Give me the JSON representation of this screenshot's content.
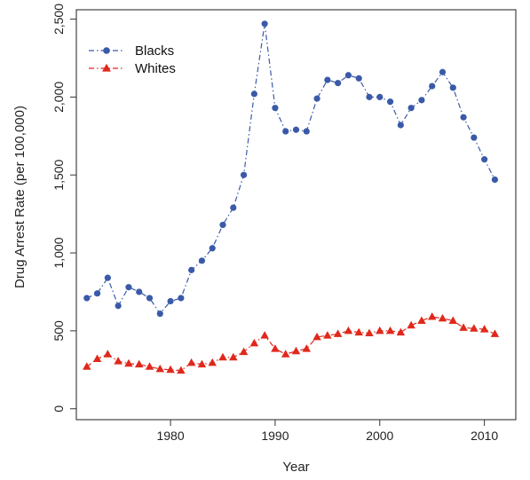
{
  "chart_data": {
    "type": "line",
    "title": "",
    "xlabel": "Year",
    "ylabel": "Drug Arrest Rate (per 100,000)",
    "xlim": [
      1971,
      2013
    ],
    "ylim": [
      -70,
      2560
    ],
    "x_ticks": [
      1980,
      1990,
      2000,
      2010
    ],
    "x_tick_labels": [
      "1980",
      "1990",
      "2000",
      "2010"
    ],
    "y_ticks": [
      0,
      500,
      1000,
      1500,
      2000,
      2500
    ],
    "y_tick_labels": [
      "0",
      "500",
      "1,000",
      "1,500",
      "2,000",
      "2,500"
    ],
    "grid": false,
    "legend_position": "top-left",
    "x": [
      1972,
      1973,
      1974,
      1975,
      1976,
      1977,
      1978,
      1979,
      1980,
      1981,
      1982,
      1983,
      1984,
      1985,
      1986,
      1987,
      1988,
      1989,
      1990,
      1991,
      1992,
      1993,
      1994,
      1995,
      1996,
      1997,
      1998,
      1999,
      2000,
      2001,
      2002,
      2003,
      2004,
      2005,
      2006,
      2007,
      2008,
      2009,
      2010,
      2011
    ],
    "series": [
      {
        "name": "Blacks",
        "color": "#3a5aa8",
        "marker": "circle",
        "line": "dash-dot",
        "values": [
          710,
          740,
          840,
          660,
          780,
          750,
          710,
          610,
          690,
          710,
          890,
          950,
          1030,
          1180,
          1290,
          1500,
          2020,
          2470,
          1930,
          1780,
          1790,
          1780,
          1990,
          2110,
          2090,
          2140,
          2120,
          2000,
          2000,
          1970,
          1820,
          1930,
          1980,
          2070,
          2160,
          2060,
          1870,
          1740,
          1600,
          1470
        ]
      },
      {
        "name": "Whites",
        "color": "#e0281c",
        "marker": "triangle",
        "line": "dash-dot",
        "values": [
          270,
          320,
          350,
          305,
          290,
          285,
          270,
          255,
          250,
          245,
          295,
          285,
          295,
          330,
          330,
          365,
          420,
          470,
          385,
          350,
          370,
          385,
          460,
          470,
          480,
          500,
          490,
          485,
          500,
          500,
          490,
          535,
          565,
          590,
          580,
          565,
          520,
          515,
          510,
          480
        ]
      }
    ]
  }
}
